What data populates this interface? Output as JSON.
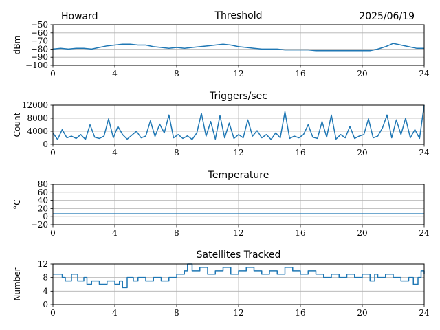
{
  "header": {
    "station": "Howard",
    "date": "2025/06/19"
  },
  "colors": {
    "series": "#1f77b4",
    "grid": "#b0b0b0"
  },
  "chart_data": [
    {
      "type": "line",
      "title": "Threshold",
      "ylabel": "dBm",
      "xlim": [
        0,
        24
      ],
      "xticks": [
        0,
        4,
        8,
        12,
        16,
        20,
        24
      ],
      "ylim": [
        -100,
        -50
      ],
      "yticks": [
        -100,
        -90,
        -80,
        -70,
        -60,
        -50
      ],
      "ytick_labels": [
        "−100",
        "−90",
        "−80",
        "−70",
        "−60",
        "−50"
      ],
      "grid": true,
      "x": [
        0,
        0.5,
        1,
        1.5,
        2,
        2.5,
        3,
        3.5,
        4,
        4.5,
        5,
        5.5,
        6,
        6.5,
        7,
        7.5,
        8,
        8.5,
        9,
        9.5,
        10,
        10.5,
        11,
        11.5,
        12,
        12.5,
        13,
        13.5,
        14,
        14.5,
        15,
        15.5,
        16,
        16.5,
        17,
        17.5,
        18,
        18.5,
        19,
        19.5,
        20,
        20.5,
        21,
        21.5,
        22,
        22.5,
        23,
        23.5,
        24
      ],
      "values": [
        -80,
        -79,
        -80,
        -79,
        -79,
        -80,
        -78,
        -76,
        -75,
        -74,
        -74,
        -75,
        -75,
        -77,
        -78,
        -79,
        -78,
        -79,
        -78,
        -77,
        -76,
        -75,
        -74,
        -75,
        -77,
        -78,
        -79,
        -80,
        -80,
        -80,
        -81,
        -81,
        -81,
        -81,
        -82,
        -82,
        -82,
        -82,
        -82,
        -82,
        -82,
        -82,
        -80,
        -77,
        -73,
        -75,
        -77,
        -79,
        -79
      ]
    },
    {
      "type": "line",
      "title": "Triggers/sec",
      "ylabel": "Count",
      "xlim": [
        0,
        24
      ],
      "xticks": [
        0,
        4,
        8,
        12,
        16,
        20,
        24
      ],
      "ylim": [
        0,
        12000
      ],
      "yticks": [
        0,
        4000,
        8000,
        12000
      ],
      "ytick_labels": [
        "0",
        "4000",
        "8000",
        "12000"
      ],
      "grid": true,
      "x": [
        0,
        0.3,
        0.6,
        0.9,
        1.2,
        1.5,
        1.8,
        2.1,
        2.4,
        2.7,
        3.0,
        3.3,
        3.6,
        3.9,
        4.2,
        4.5,
        4.8,
        5.1,
        5.4,
        5.7,
        6.0,
        6.3,
        6.6,
        6.9,
        7.2,
        7.5,
        7.8,
        8.1,
        8.4,
        8.7,
        9.0,
        9.3,
        9.6,
        9.9,
        10.2,
        10.5,
        10.8,
        11.1,
        11.4,
        11.7,
        12.0,
        12.3,
        12.6,
        12.9,
        13.2,
        13.5,
        13.8,
        14.1,
        14.4,
        14.7,
        15.0,
        15.3,
        15.6,
        15.9,
        16.2,
        16.5,
        16.8,
        17.1,
        17.4,
        17.7,
        18.0,
        18.3,
        18.6,
        18.9,
        19.2,
        19.5,
        19.8,
        20.1,
        20.4,
        20.7,
        21.0,
        21.3,
        21.6,
        21.9,
        22.2,
        22.5,
        22.8,
        23.1,
        23.4,
        23.7,
        24.0
      ],
      "values": [
        3500,
        1500,
        4500,
        2000,
        2500,
        1800,
        3000,
        1500,
        6000,
        2200,
        1800,
        2500,
        7800,
        2000,
        5500,
        3000,
        1600,
        2800,
        4000,
        2000,
        2500,
        7200,
        2400,
        6200,
        3500,
        9000,
        2000,
        3000,
        1800,
        2600,
        1500,
        3500,
        9500,
        2500,
        7000,
        1600,
        8800,
        2000,
        6500,
        1800,
        3000,
        2000,
        7500,
        2500,
        4200,
        2000,
        3000,
        1500,
        3500,
        2000,
        10000,
        1800,
        2500,
        2000,
        3000,
        6000,
        2200,
        1800,
        7000,
        2200,
        9000,
        1600,
        3000,
        2000,
        5500,
        1800,
        2500,
        3000,
        7800,
        2000,
        2500,
        5000,
        9000,
        2000,
        7500,
        3000,
        8000,
        2000,
        4500,
        1800,
        12000
      ]
    },
    {
      "type": "line",
      "title": "Temperature",
      "ylabel": "°C",
      "xlim": [
        0,
        24
      ],
      "xticks": [
        0,
        4,
        8,
        12,
        16,
        20,
        24
      ],
      "ylim": [
        -20,
        80
      ],
      "yticks": [
        -20,
        0,
        20,
        40,
        60,
        80
      ],
      "ytick_labels": [
        "−20",
        "0",
        "20",
        "40",
        "60",
        "80"
      ],
      "grid": true,
      "x": [
        0,
        24
      ],
      "values": [
        7,
        7
      ]
    },
    {
      "type": "line",
      "title": "Satellites Tracked",
      "ylabel": "Number",
      "xlim": [
        0,
        24
      ],
      "xticks": [
        0,
        4,
        8,
        12,
        16,
        20,
        24
      ],
      "ylim": [
        0,
        12
      ],
      "yticks": [
        0,
        4,
        8,
        12
      ],
      "ytick_labels": [
        "0",
        "4",
        "8",
        "12"
      ],
      "grid": true,
      "step": true,
      "x": [
        0,
        0.6,
        0.8,
        1.2,
        1.6,
        2.0,
        2.2,
        2.5,
        3.0,
        3.5,
        4.0,
        4.3,
        4.5,
        4.8,
        5.2,
        5.5,
        6.0,
        6.5,
        7.0,
        7.5,
        8.0,
        8.5,
        8.7,
        9.0,
        9.5,
        10.0,
        10.5,
        11.0,
        11.5,
        12.0,
        12.5,
        13.0,
        13.5,
        14.0,
        14.5,
        15.0,
        15.5,
        16.0,
        16.5,
        17.0,
        17.5,
        18.0,
        18.5,
        19.0,
        19.5,
        20.0,
        20.5,
        20.8,
        21.0,
        21.5,
        22.0,
        22.5,
        23.0,
        23.3,
        23.6,
        23.8,
        24.0
      ],
      "values": [
        9,
        8,
        7,
        9,
        7,
        8,
        6,
        7,
        6,
        7,
        6,
        7,
        5,
        8,
        7,
        8,
        7,
        8,
        7,
        8,
        9,
        10,
        12,
        10,
        11,
        9,
        10,
        11,
        9,
        10,
        11,
        10,
        9,
        10,
        9,
        11,
        10,
        9,
        10,
        9,
        8,
        9,
        8,
        9,
        8,
        9,
        7,
        9,
        8,
        9,
        8,
        7,
        8,
        6,
        8,
        10,
        9
      ]
    }
  ]
}
